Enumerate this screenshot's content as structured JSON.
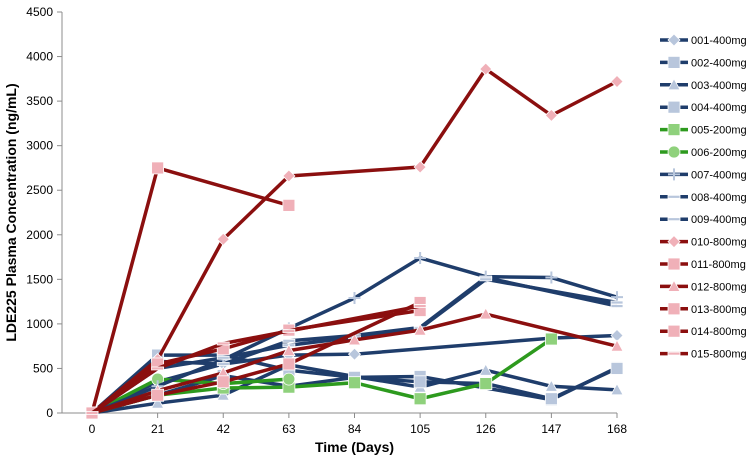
{
  "chart_data": {
    "type": "line",
    "xlabel": "Time (Days)",
    "ylabel": "LDE225 Plasma Concentration (ng/mL)",
    "x_ticks": [
      0,
      21,
      42,
      63,
      84,
      105,
      126,
      147,
      168
    ],
    "y_ticks": [
      0,
      500,
      1000,
      1500,
      2000,
      2500,
      3000,
      3500,
      4000,
      4500
    ],
    "xlim": [
      0,
      168
    ],
    "ylim": [
      0,
      4500
    ],
    "grid": false,
    "legend_position": "right",
    "colors": {
      "blue": "#1f3d6b",
      "green": "#2d9a1e",
      "red": "#8b0f0f"
    },
    "series": [
      {
        "name": "001-400mg",
        "color": "blue",
        "marker": "diamond",
        "marker_color": "#b8c6dc",
        "points": [
          [
            0,
            0
          ],
          [
            21,
            350
          ],
          [
            42,
            550
          ],
          [
            63,
            650
          ],
          [
            84,
            660
          ],
          [
            147,
            840
          ],
          [
            168,
            870
          ]
        ]
      },
      {
        "name": "002-400mg",
        "color": "blue",
        "marker": "square",
        "marker_color": "#b8c6dc",
        "points": [
          [
            0,
            0
          ],
          [
            21,
            650
          ],
          [
            42,
            650
          ],
          [
            63,
            480
          ],
          [
            84,
            400
          ],
          [
            105,
            410
          ],
          [
            147,
            150
          ],
          [
            168,
            510
          ]
        ]
      },
      {
        "name": "003-400mg",
        "color": "blue",
        "marker": "triangle",
        "marker_color": "#b8c6dc",
        "points": [
          [
            0,
            0
          ],
          [
            21,
            110
          ],
          [
            42,
            200
          ],
          [
            63,
            540
          ],
          [
            84,
            410
          ],
          [
            105,
            290
          ],
          [
            126,
            480
          ],
          [
            147,
            300
          ],
          [
            168,
            260
          ]
        ]
      },
      {
        "name": "004-400mg",
        "color": "blue",
        "marker": "square",
        "marker_color": "#b8c6dc",
        "points": [
          [
            0,
            0
          ],
          [
            21,
            200
          ],
          [
            42,
            420
          ],
          [
            63,
            300
          ],
          [
            84,
            400
          ],
          [
            105,
            350
          ],
          [
            126,
            330
          ],
          [
            147,
            160
          ],
          [
            168,
            500
          ]
        ]
      },
      {
        "name": "005-200mg",
        "color": "green",
        "marker": "square",
        "marker_color": "#8fd17c",
        "points": [
          [
            0,
            0
          ],
          [
            21,
            200
          ],
          [
            42,
            280
          ],
          [
            63,
            290
          ],
          [
            84,
            340
          ],
          [
            105,
            160
          ],
          [
            126,
            330
          ],
          [
            147,
            830
          ]
        ]
      },
      {
        "name": "006-200mg",
        "color": "green",
        "marker": "circle",
        "marker_color": "#8fd17c",
        "points": [
          [
            0,
            0
          ],
          [
            21,
            380
          ],
          [
            42,
            330
          ],
          [
            63,
            380
          ]
        ]
      },
      {
        "name": "007-400mg",
        "color": "blue",
        "marker": "star",
        "marker_color": "#b8c6dc",
        "points": [
          [
            0,
            0
          ],
          [
            21,
            300
          ],
          [
            42,
            600
          ],
          [
            63,
            950
          ],
          [
            84,
            1290
          ],
          [
            105,
            1740
          ],
          [
            126,
            1530
          ],
          [
            147,
            1520
          ],
          [
            168,
            1300
          ]
        ]
      },
      {
        "name": "008-400mg",
        "color": "blue",
        "marker": "dash",
        "marker_color": "#b8c6dc",
        "points": [
          [
            0,
            0
          ],
          [
            21,
            580
          ],
          [
            42,
            550
          ],
          [
            63,
            810
          ],
          [
            84,
            870
          ],
          [
            105,
            960
          ],
          [
            126,
            1520
          ],
          [
            168,
            1200
          ]
        ]
      },
      {
        "name": "009-400mg",
        "color": "blue",
        "marker": "dash",
        "marker_color": "#b8c6dc",
        "points": [
          [
            0,
            0
          ],
          [
            21,
            500
          ],
          [
            42,
            620
          ],
          [
            63,
            760
          ],
          [
            84,
            850
          ],
          [
            105,
            950
          ],
          [
            126,
            1500
          ],
          [
            168,
            1240
          ]
        ]
      },
      {
        "name": "010-800mg",
        "color": "red",
        "marker": "diamond",
        "marker_color": "#f0b0b8",
        "points": [
          [
            0,
            0
          ],
          [
            21,
            600
          ],
          [
            42,
            1950
          ],
          [
            63,
            2660
          ],
          [
            105,
            2760
          ],
          [
            126,
            3860
          ],
          [
            147,
            3340
          ],
          [
            168,
            3720
          ]
        ]
      },
      {
        "name": "011-800mg",
        "color": "red",
        "marker": "square",
        "marker_color": "#f0b0b8",
        "points": [
          [
            0,
            0
          ],
          [
            21,
            2750
          ],
          [
            63,
            2330
          ]
        ]
      },
      {
        "name": "012-800mg",
        "color": "red",
        "marker": "triangle",
        "marker_color": "#f0b0b8",
        "points": [
          [
            0,
            0
          ],
          [
            21,
            250
          ],
          [
            42,
            450
          ],
          [
            63,
            700
          ],
          [
            84,
            820
          ],
          [
            105,
            930
          ],
          [
            126,
            1110
          ],
          [
            168,
            750
          ]
        ]
      },
      {
        "name": "013-800mg",
        "color": "red",
        "marker": "square",
        "marker_color": "#f0b0b8",
        "points": [
          [
            0,
            0
          ],
          [
            21,
            200
          ],
          [
            42,
            350
          ],
          [
            63,
            550
          ],
          [
            105,
            1240
          ]
        ]
      },
      {
        "name": "014-800mg",
        "color": "red",
        "marker": "square",
        "marker_color": "#f0b0b8",
        "points": [
          [
            0,
            0
          ],
          [
            21,
            550
          ],
          [
            42,
            720
          ],
          [
            63,
            930
          ],
          [
            105,
            1150
          ]
        ]
      },
      {
        "name": "015-800mg",
        "color": "red",
        "marker": "dash",
        "marker_color": "#f0b0b8",
        "points": [
          [
            0,
            0
          ],
          [
            21,
            500
          ],
          [
            42,
            780
          ],
          [
            63,
            920
          ],
          [
            105,
            1200
          ]
        ]
      }
    ]
  }
}
